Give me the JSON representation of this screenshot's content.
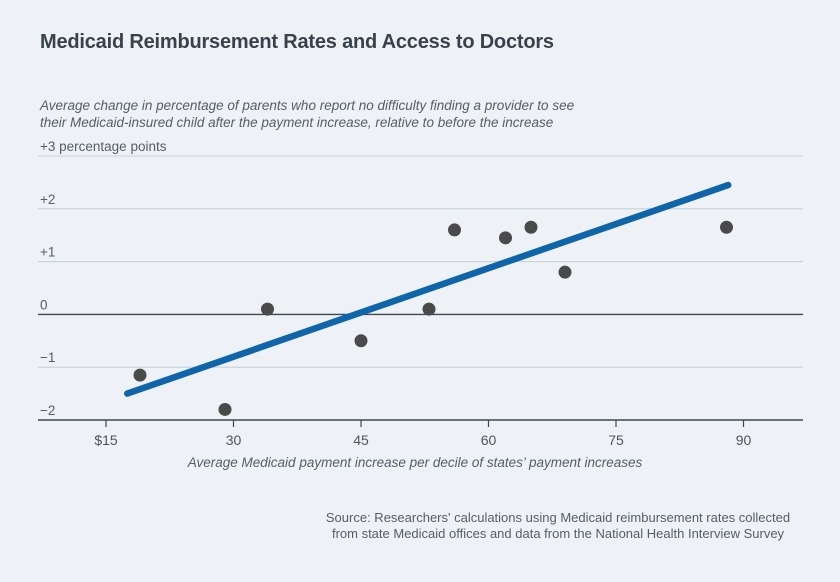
{
  "header": {
    "title": "Medicaid Reimbursement Rates and Access to Doctors",
    "subtitle_line1": "Average change in percentage of parents who report no difficulty finding a provider to see",
    "subtitle_line2": "their Medicaid-insured child after the payment increase, relative to before the increase"
  },
  "source": {
    "line1": "Source: Researchers' calculations using Medicaid reimbursement rates collected",
    "line2": "from state Medicaid offices and data from the National Health Interview Survey"
  },
  "colors": {
    "background": "#eef2f6",
    "title_text": "#39424b",
    "muted_text": "#565d64",
    "tick_text": "#4d555c",
    "grid_light": "#c8d0d8",
    "grid_dark": "#3f464d",
    "dot": "#4a4a4a",
    "trend_blue": "#0f65aa"
  },
  "chart_data": {
    "type": "scatter",
    "title": "Medicaid Reimbursement Rates and Access to Doctors",
    "subtitle": "Average change in percentage of parents who report no difficulty finding a provider to see their Medicaid-insured child after the payment increase, relative to before the increase",
    "xlabel": "Average Medicaid payment increase per decile of states’ payment increases",
    "ylabel": "percentage points",
    "xlim": [
      7,
      97
    ],
    "ylim": [
      -2,
      3
    ],
    "grid": "horizontal",
    "legend": "none",
    "x_ticks": [
      {
        "value": 15,
        "label": "$15"
      },
      {
        "value": 30,
        "label": "30"
      },
      {
        "value": 45,
        "label": "45"
      },
      {
        "value": 60,
        "label": "60"
      },
      {
        "value": 75,
        "label": "75"
      },
      {
        "value": 90,
        "label": "90"
      }
    ],
    "y_ticks": [
      {
        "value": 3,
        "label": "+3 percentage points"
      },
      {
        "value": 2,
        "label": "+2"
      },
      {
        "value": 1,
        "label": "+1"
      },
      {
        "value": 0,
        "label": "0"
      },
      {
        "value": -1,
        "label": "−1"
      },
      {
        "value": -2,
        "label": "−2"
      }
    ],
    "points": [
      {
        "x": 19,
        "y": -1.15
      },
      {
        "x": 29,
        "y": -1.8
      },
      {
        "x": 34,
        "y": 0.1
      },
      {
        "x": 45,
        "y": -0.5
      },
      {
        "x": 53,
        "y": 0.1
      },
      {
        "x": 56,
        "y": 1.6
      },
      {
        "x": 62,
        "y": 1.45
      },
      {
        "x": 65,
        "y": 1.65
      },
      {
        "x": 69,
        "y": 0.8
      },
      {
        "x": 88,
        "y": 1.65
      }
    ],
    "trend_line": {
      "x1": 17.5,
      "y1": -1.5,
      "x2": 88.2,
      "y2": 2.45
    }
  }
}
